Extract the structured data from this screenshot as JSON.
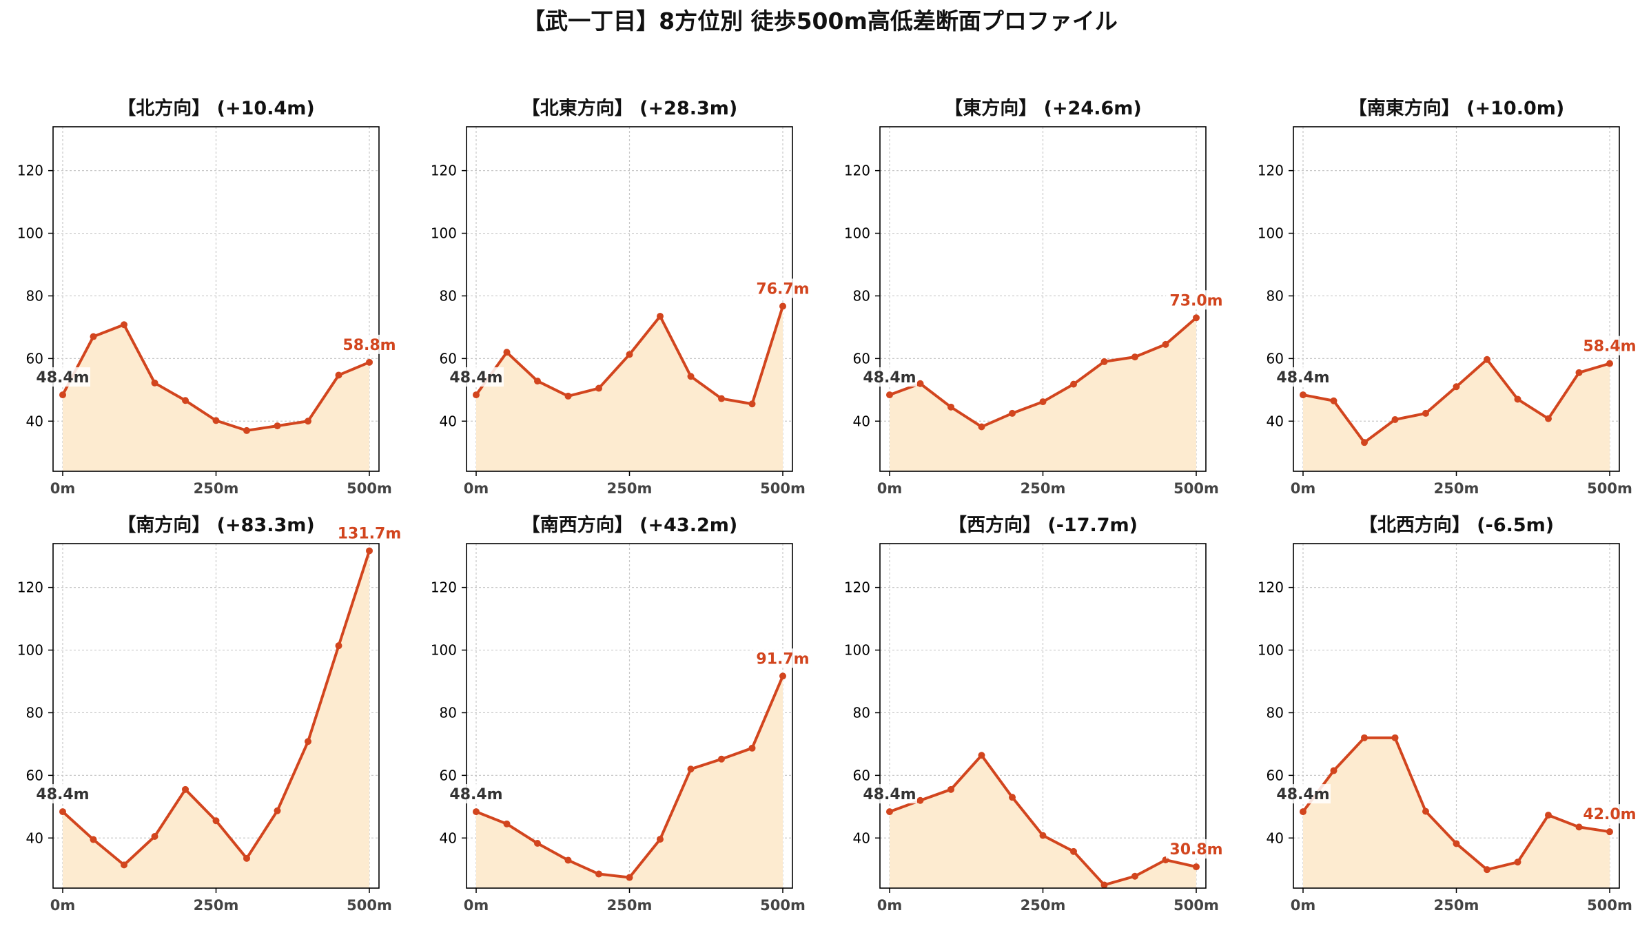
{
  "title": "【武一丁目】8方位別 徒歩500m高低差断面プロファイル",
  "colors": {
    "line": "#d2451e",
    "fill": "#fdebd0",
    "grid": "#c8c8c8",
    "axis": "#000000",
    "tick_text": "#000000",
    "x_tick_text": "#444444",
    "start_label": "#333333"
  },
  "chart_data": [
    {
      "type": "line",
      "title": "【北方向】 (+10.4m)",
      "x": [
        0,
        50,
        100,
        150,
        200,
        250,
        300,
        350,
        400,
        450,
        500
      ],
      "values": [
        48.4,
        67.0,
        70.8,
        52.2,
        46.6,
        40.2,
        37.0,
        38.5,
        40.0,
        54.7,
        58.8
      ],
      "start_label": "48.4m",
      "end_label": "58.8m",
      "xticks": [
        "0m",
        "250m",
        "500m"
      ],
      "yticks": [
        "40",
        "60",
        "80",
        "100",
        "120"
      ],
      "xlim": [
        0,
        500
      ],
      "ylim": [
        24,
        134
      ],
      "grid": true
    },
    {
      "type": "line",
      "title": "【北東方向】 (+28.3m)",
      "x": [
        0,
        50,
        100,
        150,
        200,
        250,
        300,
        350,
        400,
        450,
        500
      ],
      "values": [
        48.4,
        62.0,
        52.8,
        48.0,
        50.5,
        61.3,
        73.5,
        54.3,
        47.2,
        45.5,
        76.7
      ],
      "start_label": "48.4m",
      "end_label": "76.7m",
      "xticks": [
        "0m",
        "250m",
        "500m"
      ],
      "yticks": [
        "40",
        "60",
        "80",
        "100",
        "120"
      ],
      "xlim": [
        0,
        500
      ],
      "ylim": [
        24,
        134
      ],
      "grid": true
    },
    {
      "type": "line",
      "title": "【東方向】 (+24.6m)",
      "x": [
        0,
        50,
        100,
        150,
        200,
        250,
        300,
        350,
        400,
        450,
        500
      ],
      "values": [
        48.4,
        52.0,
        44.5,
        38.2,
        42.5,
        46.2,
        51.8,
        59.0,
        60.5,
        64.5,
        73.0
      ],
      "start_label": "48.4m",
      "end_label": "73.0m",
      "xticks": [
        "0m",
        "250m",
        "500m"
      ],
      "yticks": [
        "40",
        "60",
        "80",
        "100",
        "120"
      ],
      "xlim": [
        0,
        500
      ],
      "ylim": [
        24,
        134
      ],
      "grid": true
    },
    {
      "type": "line",
      "title": "【南東方向】 (+10.0m)",
      "x": [
        0,
        50,
        100,
        150,
        200,
        250,
        300,
        350,
        400,
        450,
        500
      ],
      "values": [
        48.4,
        46.5,
        33.2,
        40.5,
        42.5,
        51.0,
        59.7,
        47.0,
        40.8,
        55.5,
        58.4
      ],
      "start_label": "48.4m",
      "end_label": "58.4m",
      "xticks": [
        "0m",
        "250m",
        "500m"
      ],
      "yticks": [
        "40",
        "60",
        "80",
        "100",
        "120"
      ],
      "xlim": [
        0,
        500
      ],
      "ylim": [
        24,
        134
      ],
      "grid": true
    },
    {
      "type": "line",
      "title": "【南方向】 (+83.3m)",
      "x": [
        0,
        50,
        100,
        150,
        200,
        250,
        300,
        350,
        400,
        450,
        500
      ],
      "values": [
        48.4,
        39.5,
        31.4,
        40.5,
        55.5,
        45.5,
        33.5,
        48.7,
        70.8,
        101.4,
        131.7
      ],
      "start_label": "48.4m",
      "end_label": "131.7m",
      "xticks": [
        "0m",
        "250m",
        "500m"
      ],
      "yticks": [
        "40",
        "60",
        "80",
        "100",
        "120"
      ],
      "xlim": [
        0,
        500
      ],
      "ylim": [
        24,
        134
      ],
      "grid": true
    },
    {
      "type": "line",
      "title": "【南西方向】 (+43.2m)",
      "x": [
        0,
        50,
        100,
        150,
        200,
        250,
        300,
        350,
        400,
        450,
        500
      ],
      "values": [
        48.4,
        44.5,
        38.3,
        32.9,
        28.5,
        27.4,
        39.6,
        62.0,
        65.2,
        68.7,
        91.7
      ],
      "start_label": "48.4m",
      "end_label": "91.7m",
      "xticks": [
        "0m",
        "250m",
        "500m"
      ],
      "yticks": [
        "40",
        "60",
        "80",
        "100",
        "120"
      ],
      "xlim": [
        0,
        500
      ],
      "ylim": [
        24,
        134
      ],
      "grid": true
    },
    {
      "type": "line",
      "title": "【西方向】 (-17.7m)",
      "x": [
        0,
        50,
        100,
        150,
        200,
        250,
        300,
        350,
        400,
        450,
        500
      ],
      "values": [
        48.4,
        52.0,
        55.5,
        66.4,
        53.0,
        40.8,
        35.7,
        25.0,
        27.8,
        33.0,
        30.8
      ],
      "start_label": "48.4m",
      "end_label": "30.8m",
      "xticks": [
        "0m",
        "250m",
        "500m"
      ],
      "yticks": [
        "40",
        "60",
        "80",
        "100",
        "120"
      ],
      "xlim": [
        0,
        500
      ],
      "ylim": [
        24,
        134
      ],
      "grid": true
    },
    {
      "type": "line",
      "title": "【北西方向】 (-6.5m)",
      "x": [
        0,
        50,
        100,
        150,
        200,
        250,
        300,
        350,
        400,
        450,
        500
      ],
      "values": [
        48.4,
        61.5,
        72.0,
        72.0,
        48.5,
        38.2,
        29.9,
        32.3,
        47.3,
        43.5,
        42.0
      ],
      "start_label": "48.4m",
      "end_label": "42.0m",
      "xticks": [
        "0m",
        "250m",
        "500m"
      ],
      "yticks": [
        "40",
        "60",
        "80",
        "100",
        "120"
      ],
      "xlim": [
        0,
        500
      ],
      "ylim": [
        24,
        134
      ],
      "grid": true
    }
  ]
}
